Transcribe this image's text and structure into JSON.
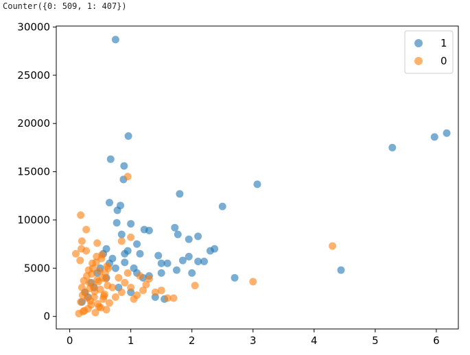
{
  "output_text": "Counter({0: 509, 1: 407})",
  "chart_data": {
    "type": "scatter",
    "xlim": [
      -0.22,
      6.36
    ],
    "ylim": [
      -1300,
      30100
    ],
    "xticks": [
      0,
      1,
      2,
      3,
      4,
      5,
      6
    ],
    "yticks": [
      0,
      5000,
      10000,
      15000,
      20000,
      25000,
      30000
    ],
    "grid": false,
    "legend": "upper right",
    "series": [
      {
        "name": "1",
        "color": "#1f77b4",
        "x": [
          0.75,
          0.67,
          0.96,
          0.89,
          0.88,
          0.65,
          0.83,
          0.78,
          1.8,
          2.5,
          3.07,
          5.28,
          5.97,
          6.17,
          4.44,
          2.7,
          2.37,
          2.3,
          2.1,
          1.95,
          1.72,
          1.77,
          1.22,
          1.3,
          0.77,
          1.0,
          1.5,
          1.6,
          1.85,
          2.0,
          2.1,
          2.2,
          1.45,
          1.1,
          1.15,
          0.95,
          0.9,
          1.05,
          1.3,
          1.5,
          1.4,
          1.55,
          1.75,
          1.95,
          0.6,
          0.7,
          0.5,
          0.4,
          0.3,
          0.6,
          0.8,
          1.0,
          1.2,
          0.85,
          0.9,
          1.1,
          0.55,
          0.65,
          0.75,
          0.45,
          0.35,
          0.25,
          0.2
        ],
        "values": [
          28700,
          16300,
          18700,
          15600,
          14200,
          11800,
          11500,
          11000,
          12700,
          11400,
          13700,
          17500,
          18600,
          19000,
          4800,
          4000,
          7000,
          6800,
          8300,
          8000,
          9200,
          8500,
          9000,
          8900,
          9700,
          9600,
          5500,
          5500,
          5800,
          4500,
          5700,
          5700,
          6300,
          7500,
          6500,
          6800,
          5600,
          5000,
          4200,
          4500,
          2000,
          1800,
          4800,
          6200,
          7000,
          6000,
          5000,
          3000,
          2000,
          4000,
          3000,
          2500,
          4000,
          8500,
          6500,
          4500,
          6500,
          5500,
          5000,
          4500,
          3500,
          2500,
          1500
        ]
      },
      {
        "name": "0",
        "color": "#ff7f0e",
        "x": [
          0.15,
          0.18,
          0.2,
          0.22,
          0.25,
          0.28,
          0.3,
          0.32,
          0.35,
          0.38,
          0.4,
          0.42,
          0.45,
          0.48,
          0.5,
          0.52,
          0.55,
          0.58,
          0.6,
          0.62,
          0.17,
          0.21,
          0.24,
          0.27,
          0.31,
          0.34,
          0.37,
          0.41,
          0.44,
          0.47,
          0.51,
          0.54,
          0.57,
          0.61,
          0.65,
          0.7,
          0.75,
          0.8,
          0.85,
          0.9,
          0.95,
          1.0,
          1.05,
          1.1,
          1.15,
          1.2,
          1.25,
          0.19,
          0.23,
          0.29,
          0.33,
          0.36,
          0.39,
          0.43,
          0.46,
          0.49,
          0.53,
          0.56,
          0.59,
          0.63,
          0.95,
          0.18,
          0.27,
          4.3,
          3.0,
          2.05,
          1.6,
          1.3,
          0.2,
          0.45,
          0.85,
          0.1,
          1.0,
          1.4,
          1.7,
          1.5
        ],
        "values": [
          300,
          1500,
          3000,
          500,
          2500,
          4200,
          800,
          3500,
          1200,
          5000,
          2000,
          400,
          3800,
          1000,
          2800,
          6000,
          1800,
          4500,
          700,
          3200,
          5800,
          2200,
          600,
          6800,
          4800,
          1600,
          5500,
          2600,
          6200,
          3600,
          900,
          4000,
          2300,
          5200,
          1400,
          3000,
          2000,
          4000,
          2500,
          3500,
          4500,
          3000,
          1800,
          2200,
          4200,
          2700,
          3300,
          7000,
          3700,
          1900,
          2900,
          4400,
          3100,
          5600,
          1300,
          4700,
          6400,
          2100,
          3900,
          5000,
          14500,
          10500,
          9000,
          7300,
          3600,
          3200,
          1900,
          3900,
          7800,
          7600,
          7800,
          6500,
          8200,
          2500,
          1900,
          2700
        ]
      }
    ]
  }
}
